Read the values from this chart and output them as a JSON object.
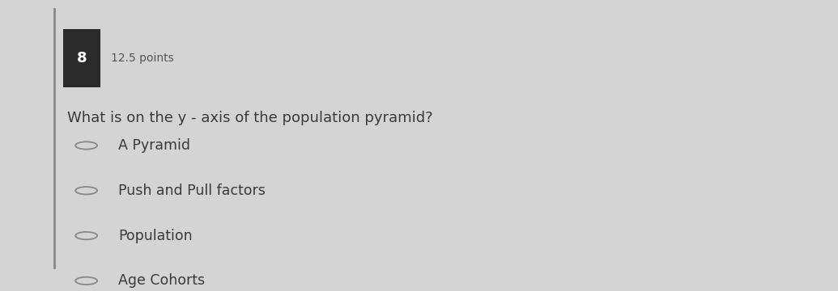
{
  "background_color": "#d4d4d4",
  "question_number": "8",
  "number_box_color": "#2b2b2b",
  "points_text": "12.5 points",
  "question_text": "What is on the y - axis of the population pyramid?",
  "options": [
    "A Pyramid",
    "Push and Pull factors",
    "Population",
    "Age Cohorts"
  ],
  "text_color": "#3a3a3a",
  "circle_color": "#888888",
  "points_color": "#555555",
  "font_size_question": 13,
  "font_size_options": 12.5,
  "font_size_points": 10,
  "font_size_number": 13
}
